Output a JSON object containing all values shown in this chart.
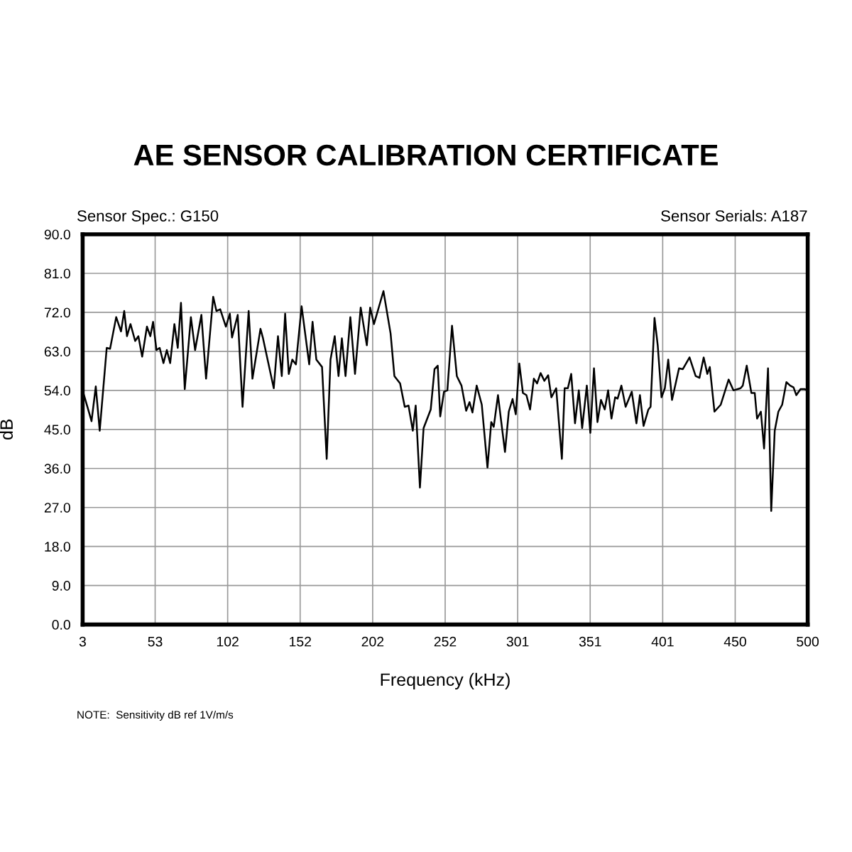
{
  "chart_data": {
    "type": "line",
    "title": "AE SENSOR CALIBRATION CERTIFICATE",
    "xlabel": "Frequency (kHz)",
    "ylabel": "dB",
    "annotations": [
      "Sensor Spec.: G150",
      "Sensor Serials: A187",
      "NOTE:  Sensitivity dB ref 1V/m/s"
    ],
    "xlim": [
      3,
      500
    ],
    "ylim": [
      0,
      90
    ],
    "xticks": [
      {
        "value": 3,
        "label": "3"
      },
      {
        "value": 52.7,
        "label": "53"
      },
      {
        "value": 102.4,
        "label": "102"
      },
      {
        "value": 152.1,
        "label": "152"
      },
      {
        "value": 201.8,
        "label": "202"
      },
      {
        "value": 251.5,
        "label": "252"
      },
      {
        "value": 301.2,
        "label": "301"
      },
      {
        "value": 350.9,
        "label": "351"
      },
      {
        "value": 400.6,
        "label": "401"
      },
      {
        "value": 450.3,
        "label": "450"
      },
      {
        "value": 500,
        "label": "500"
      }
    ],
    "yticks": [
      {
        "value": 0,
        "label": "0.0"
      },
      {
        "value": 9,
        "label": "9.0"
      },
      {
        "value": 18,
        "label": "18.0"
      },
      {
        "value": 27,
        "label": "27.0"
      },
      {
        "value": 36,
        "label": "36.0"
      },
      {
        "value": 45,
        "label": "45.0"
      },
      {
        "value": 54,
        "label": "54.0"
      },
      {
        "value": 63,
        "label": "63.0"
      },
      {
        "value": 72,
        "label": "72.0"
      },
      {
        "value": 81,
        "label": "81.0"
      },
      {
        "value": 90,
        "label": "90.0"
      }
    ],
    "grid": true,
    "marker": "none",
    "line_style": "solid",
    "series": [
      {
        "color": "#000000",
        "x": [
          3,
          9.1,
          12,
          14.7,
          19.5,
          21.8,
          26,
          29.3,
          31.5,
          33.4,
          35.8,
          39,
          41.2,
          43.8,
          47.1,
          49.4,
          51.3,
          53.6,
          55.8,
          58.4,
          60.7,
          63,
          65.9,
          68.2,
          70.4,
          73,
          77.2,
          80.1,
          84.4,
          87.6,
          92.5,
          94.7,
          97.3,
          101.2,
          103.9,
          105.4,
          109.3,
          112.6,
          116.8,
          119.4,
          124.9,
          126.5,
          134,
          136.9,
          139.5,
          141.8,
          144.3,
          146.7,
          149.2,
          153.1,
          158.3,
          160.6,
          163.2,
          167.1,
          170.3,
          172.9,
          175.8,
          178.4,
          180.7,
          183.2,
          186.5,
          189.7,
          193.6,
          197.8,
          200.1,
          202.7,
          209.2,
          214.1,
          216.7,
          220.6,
          223.8,
          226.4,
          229.3,
          231.3,
          234.2,
          236.7,
          241.6,
          244.2,
          246.4,
          248.1,
          250.7,
          253,
          256.2,
          259.5,
          262.7,
          265.9,
          268.2,
          270.2,
          273.1,
          276.6,
          280.5,
          283.1,
          284.8,
          287.7,
          292.5,
          295.1,
          297.7,
          299.9,
          302.3,
          304.8,
          307.2,
          309.7,
          312.3,
          314.5,
          316.9,
          319.5,
          322.1,
          324.3,
          327.6,
          331.5,
          333.4,
          335.6,
          337.9,
          340.5,
          343.1,
          345.4,
          348.6,
          351,
          353.5,
          355.9,
          358.3,
          360.9,
          363.2,
          365.5,
          368,
          369.7,
          372.3,
          375.2,
          379.4,
          382.6,
          385,
          387.5,
          390.8,
          392.3,
          395,
          397.2,
          399.8,
          402.1,
          404.4,
          407,
          411.8,
          414.4,
          419,
          423.2,
          425.8,
          428.7,
          431.2,
          432.9,
          436.1,
          440.4,
          445.8,
          449.1,
          454,
          455.5,
          458.2,
          461.4,
          463.7,
          465.3,
          467.9,
          470.1,
          472.8,
          475,
          477.4,
          479.9,
          482.5,
          485.4,
          488,
          490.3,
          492.2,
          495.1,
          497.8,
          500
        ],
        "values": [
          54,
          46.9,
          54.9,
          44.7,
          63.8,
          63.6,
          70.9,
          67.6,
          72.3,
          66.5,
          69.3,
          65.4,
          66.5,
          61.8,
          68.7,
          66.5,
          69.8,
          63.3,
          63.8,
          60.3,
          63.3,
          60.3,
          69.3,
          63.8,
          74.2,
          54.3,
          70.9,
          63.3,
          71.4,
          56.7,
          75.6,
          72.3,
          72.7,
          68.7,
          71.7,
          66.2,
          71.4,
          50.2,
          72.3,
          56.7,
          68.2,
          66.2,
          54.5,
          66.5,
          57.3,
          71.7,
          57.8,
          61.1,
          60,
          73.4,
          60,
          69.8,
          61.1,
          59.4,
          38.2,
          61.1,
          66.5,
          57.3,
          66,
          57.3,
          70.9,
          57.8,
          73.1,
          64.4,
          73.1,
          69.3,
          76.9,
          67.1,
          57.3,
          55.6,
          50.2,
          50.5,
          44.7,
          50.5,
          31.6,
          45.3,
          49.6,
          58.9,
          59.7,
          48,
          53.7,
          54,
          68.9,
          57.3,
          55.1,
          49.3,
          51.3,
          48.9,
          55.1,
          50.7,
          36.2,
          46.7,
          45.6,
          52.9,
          39.8,
          49.1,
          52,
          48.5,
          60.2,
          53.4,
          52.9,
          49.6,
          56.7,
          55.6,
          58,
          56.2,
          57.5,
          52.4,
          54.5,
          38.2,
          54.5,
          54.5,
          57.8,
          46.4,
          54,
          45.3,
          55.1,
          44.2,
          59.1,
          46.7,
          51.8,
          49.6,
          54,
          47.5,
          52.4,
          52.1,
          55.1,
          50.2,
          53.7,
          46.4,
          52.9,
          45.8,
          49.6,
          50.2,
          70.7,
          64.4,
          52.4,
          54.5,
          61.1,
          51.8,
          59.1,
          58.9,
          61.6,
          57.3,
          56.9,
          61.6,
          57.8,
          59.4,
          49.1,
          50.7,
          56.5,
          54,
          54.5,
          55.1,
          59.7,
          53.4,
          53.4,
          47.5,
          49.1,
          40.6,
          59.1,
          26.2,
          44.7,
          49.1,
          50.7,
          55.9,
          55.1,
          54.7,
          52.9,
          54.3,
          54.3,
          54
        ]
      }
    ]
  }
}
